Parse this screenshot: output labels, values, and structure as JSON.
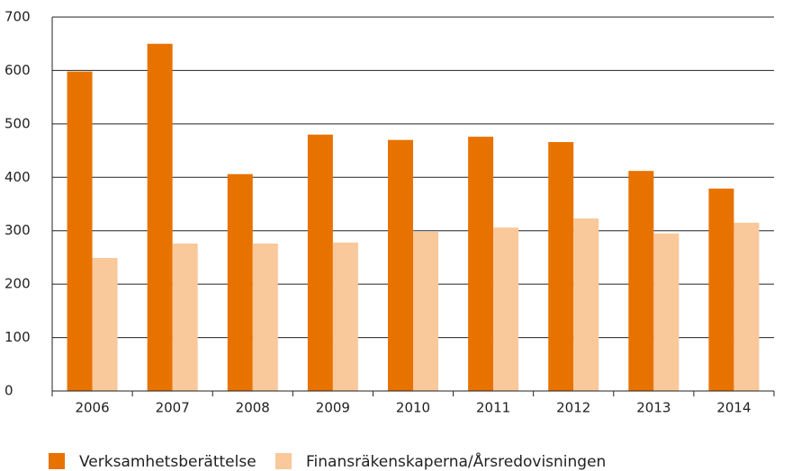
{
  "chart_data": {
    "type": "bar",
    "categories": [
      "2006",
      "2007",
      "2008",
      "2009",
      "2010",
      "2011",
      "2012",
      "2013",
      "2014"
    ],
    "series": [
      {
        "name": "Verksamhetsberättelse",
        "color": "#e87200",
        "values": [
          598,
          650,
          406,
          480,
          470,
          476,
          466,
          412,
          379
        ]
      },
      {
        "name": "Finansräkenskaperna/Årsredovisningen",
        "color": "#f9c89b",
        "values": [
          249,
          276,
          276,
          278,
          298,
          306,
          323,
          295,
          315
        ]
      }
    ],
    "ylim": [
      0,
      700
    ],
    "yticks": [
      0,
      100,
      200,
      300,
      400,
      500,
      600,
      700
    ],
    "grid": true
  }
}
